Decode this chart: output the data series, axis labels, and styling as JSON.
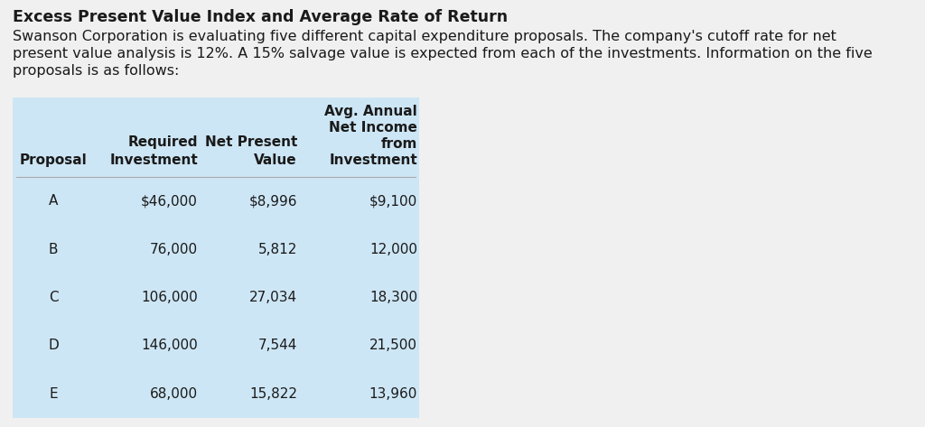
{
  "title": "Excess Present Value Index and Average Rate of Return",
  "subtitle_line1": "Swanson Corporation is evaluating five different capital expenditure proposals. The company's cutoff rate for net",
  "subtitle_line2": "present value analysis is 12%. A 15% salvage value is expected from each of the investments. Information on the five",
  "subtitle_line3": "proposals is as follows:",
  "proposals": [
    "A",
    "B",
    "C",
    "D",
    "E"
  ],
  "required_investment": [
    "$46,000",
    "76,000",
    "106,000",
    "146,000",
    "68,000"
  ],
  "net_present_value": [
    "$8,996",
    "5,812",
    "27,034",
    "7,544",
    "15,822"
  ],
  "avg_annual_net_income": [
    "$9,100",
    "12,000",
    "18,300",
    "21,500",
    "13,960"
  ],
  "table_bg": "#cde6f5",
  "page_bg": "#f0f0f0",
  "text_color": "#1a1a1a",
  "title_fontsize": 12.5,
  "subtitle_fontsize": 11.5,
  "table_fontsize": 11.0,
  "table_header_fontsize": 11.0,
  "fig_width": 10.24,
  "fig_height": 4.73,
  "dpi": 100
}
